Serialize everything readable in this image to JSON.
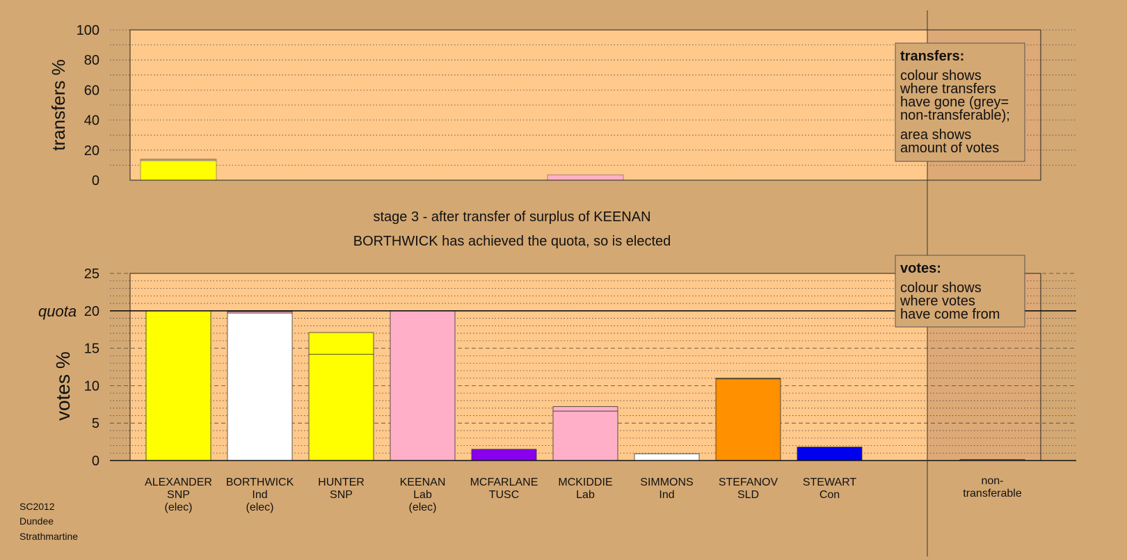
{
  "chart_data": [
    {
      "type": "bar",
      "stacked": true,
      "panel": "transfers",
      "ylabel": "transfers %",
      "ylim": [
        0,
        100
      ],
      "yticks": [
        0,
        20,
        40,
        60,
        80,
        100
      ],
      "grid": "dotted",
      "categories": [
        "ALEXANDER",
        "BORTHWICK",
        "HUNTER",
        "KEENAN",
        "MCFARLANE",
        "MCKIDDIE",
        "SIMMONS",
        "STEFANOV",
        "STEWART",
        "non-transferable"
      ],
      "segments": [
        {
          "category": "ALEXANDER",
          "color": "#ffff00",
          "value": 13.0
        },
        {
          "category": "ALEXANDER",
          "color": "#ffffff",
          "value": 0.5
        },
        {
          "category": "ALEXANDER",
          "color": "#ffb0c8",
          "value": 0.5
        },
        {
          "category": "MCKIDDIE",
          "color": "#ffb0c8",
          "value": 3.6
        }
      ],
      "legend": {
        "title": "transfers:",
        "lines1": [
          "colour shows",
          "where transfers",
          "have gone (grey=",
          "non-transferable);"
        ],
        "lines2": [
          "area shows",
          "amount of votes"
        ]
      }
    },
    {
      "type": "bar",
      "stacked": true,
      "panel": "votes",
      "ylabel": "votes %",
      "ylim": [
        0,
        25
      ],
      "yticks": [
        0,
        5,
        10,
        15,
        20,
        25
      ],
      "grid": "dotted",
      "quota": 20,
      "quota_label": "quota",
      "categories": [
        "ALEXANDER",
        "BORTHWICK",
        "HUNTER",
        "KEENAN",
        "MCFARLANE",
        "MCKIDDIE",
        "SIMMONS",
        "STEFANOV",
        "STEWART",
        "",
        "non-transferable"
      ],
      "candidates": [
        {
          "name": "ALEXANDER",
          "party": "SNP",
          "status": "(elec)",
          "segments": [
            {
              "color": "#ffff00",
              "value": 20.0
            }
          ]
        },
        {
          "name": "BORTHWICK",
          "party": "Ind",
          "status": "(elec)",
          "segments": [
            {
              "color": "#ffffff",
              "value": 19.7
            },
            {
              "color": "#ffb0c8",
              "value": 0.2
            }
          ]
        },
        {
          "name": "HUNTER",
          "party": "SNP",
          "status": "",
          "segments": [
            {
              "color": "#ffff00",
              "value": 14.2
            },
            {
              "color": "#ffff00",
              "value": 2.9
            }
          ]
        },
        {
          "name": "KEENAN",
          "party": "Lab",
          "status": "(elec)",
          "segments": [
            {
              "color": "#ffb0c8",
              "value": 20.0
            }
          ]
        },
        {
          "name": "MCFARLANE",
          "party": "TUSC",
          "status": "",
          "segments": [
            {
              "color": "#8800ee",
              "value": 1.5
            }
          ]
        },
        {
          "name": "MCKIDDIE",
          "party": "Lab",
          "status": "",
          "segments": [
            {
              "color": "#ffb0c8",
              "value": 6.6
            },
            {
              "color": "#ffb0c8",
              "value": 0.6
            }
          ]
        },
        {
          "name": "SIMMONS",
          "party": "Ind",
          "status": "",
          "segments": [
            {
              "color": "#ffffff",
              "value": 0.9
            }
          ]
        },
        {
          "name": "STEFANOV",
          "party": "SLD",
          "status": "",
          "segments": [
            {
              "color": "#ff9000",
              "value": 10.9
            },
            {
              "color": "#ff9000",
              "value": 0.1
            }
          ]
        },
        {
          "name": "STEWART",
          "party": "Con",
          "status": "",
          "segments": [
            {
              "color": "#0000ee",
              "value": 1.8
            }
          ]
        },
        {
          "name": "non-transferable",
          "party": "",
          "status": "",
          "segments": [
            {
              "color": "#999999",
              "value": 0.15
            }
          ]
        }
      ],
      "non_transferable_label": [
        "non-",
        "transferable"
      ],
      "legend": {
        "title": "votes:",
        "lines1": [
          "colour shows",
          "where votes",
          "have come from"
        ]
      }
    }
  ],
  "stage_text": "stage 3 - after transfer of surplus of KEENAN",
  "elected_text": "BORTHWICK has achieved the quota, so is elected",
  "footer": [
    "SC2012",
    "Dundee",
    "Strathmartine"
  ],
  "colors": {
    "background": "#d4a873",
    "plot_area": "#ffc98b",
    "plot_area_shaded": "#dda976"
  }
}
